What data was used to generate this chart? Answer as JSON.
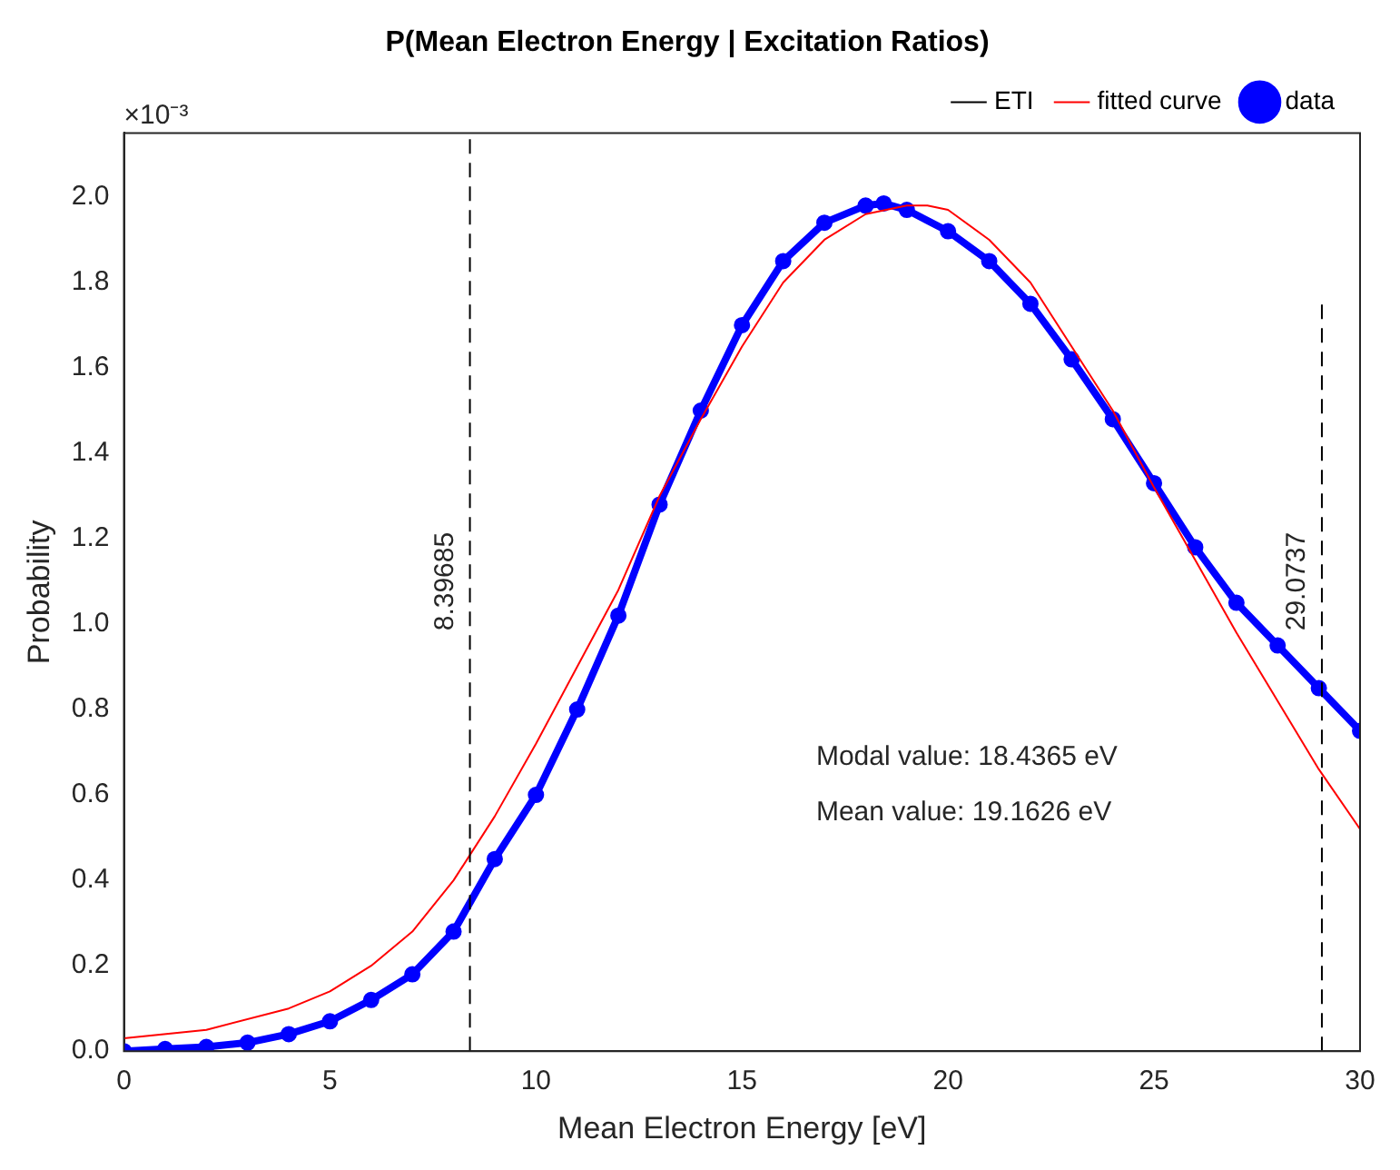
{
  "chart_data": {
    "type": "line",
    "title": "P(Mean Electron Energy | Excitation Ratios)",
    "xlabel": "Mean Electron Energy [eV]",
    "ylabel": "Probability",
    "xlim": [
      0,
      30
    ],
    "xticks": [
      0,
      5,
      10,
      15,
      20,
      25,
      30
    ],
    "ylim": [
      0,
      2.15
    ],
    "yticks": [
      {
        "value": 0,
        "label": "0.0"
      },
      {
        "value": 0.2,
        "label": "0.2"
      },
      {
        "value": 0.4,
        "label": "0.4"
      },
      {
        "value": 0.6,
        "label": "0.6"
      },
      {
        "value": 0.8,
        "label": "0.8"
      },
      {
        "value": 1,
        "label": "1.0"
      },
      {
        "value": 1.2,
        "label": "1.2"
      },
      {
        "value": 1.4,
        "label": "1.4"
      },
      {
        "value": 1.6,
        "label": "1.6"
      },
      {
        "value": 1.8,
        "label": "1.8"
      },
      {
        "value": 2,
        "label": "2.0"
      }
    ],
    "grid": false,
    "legend": "top right",
    "series": [
      {
        "name": "data",
        "color": "#0000ff",
        "marker": "circle",
        "x": [
          0,
          1,
          2,
          3,
          4,
          5,
          6,
          7,
          8,
          9,
          10,
          11,
          12,
          13,
          14,
          15,
          16,
          17,
          18,
          18.44,
          19,
          20,
          21,
          22,
          23,
          24,
          25,
          26,
          27,
          28,
          29,
          30
        ],
        "values": [
          0,
          0.005,
          0.01,
          0.02,
          0.04,
          0.07,
          0.12,
          0.18,
          0.28,
          0.45,
          0.6,
          0.8,
          1.02,
          1.28,
          1.5,
          1.7,
          1.85,
          1.94,
          1.98,
          1.985,
          1.97,
          1.92,
          1.85,
          1.75,
          1.62,
          1.48,
          1.33,
          1.18,
          1.05,
          0.95,
          0.85,
          0.75
        ]
      },
      {
        "name": "fitted curve",
        "color": "#ff0000",
        "x": [
          0,
          2,
          4,
          5,
          6,
          7,
          8,
          9,
          10,
          11,
          12,
          13,
          14,
          15,
          16,
          17,
          18,
          19,
          19.5,
          20,
          21,
          22,
          23,
          24,
          25,
          26,
          27,
          28,
          29,
          30
        ],
        "values": [
          0.03,
          0.05,
          0.1,
          0.14,
          0.2,
          0.28,
          0.4,
          0.55,
          0.72,
          0.9,
          1.08,
          1.3,
          1.48,
          1.65,
          1.8,
          1.9,
          1.96,
          1.98,
          1.98,
          1.97,
          1.9,
          1.8,
          1.65,
          1.5,
          1.32,
          1.15,
          0.98,
          0.82,
          0.66,
          0.52
        ]
      },
      {
        "name": "ETI",
        "color": "#000000",
        "line_style": "dashed",
        "x": [
          8.39685,
          8.39685,
          null,
          29.0737,
          29.0737
        ],
        "values": [
          0,
          2.15,
          null,
          0,
          1.75
        ]
      }
    ],
    "annotations": [
      "×10⁻³",
      "Modal value: 18.4365 eV",
      "Mean value: 19.1626 eV",
      {
        "text": "8.39685",
        "x": 8.39685,
        "y": 1.1
      },
      {
        "text": "29.0737",
        "x": 29.0737,
        "y": 1.1
      }
    ]
  }
}
